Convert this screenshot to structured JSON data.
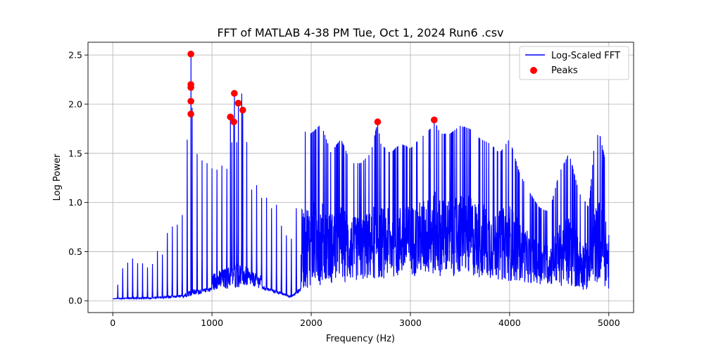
{
  "chart_data": {
    "type": "line",
    "title": "FFT of MATLAB 4-38 PM Tue, Oct 1, 2024 Run6 .csv",
    "xlabel": "Frequency (Hz)",
    "ylabel": "Log Power",
    "xlim": [
      -250,
      5250
    ],
    "ylim": [
      -0.12,
      2.63
    ],
    "xticks": [
      0,
      1000,
      2000,
      3000,
      4000,
      5000
    ],
    "yticks": [
      0.0,
      0.5,
      1.0,
      1.5,
      2.0,
      2.5
    ],
    "xtick_labels": [
      "0",
      "1000",
      "2000",
      "3000",
      "4000",
      "5000"
    ],
    "ytick_labels": [
      "0.0",
      "0.5",
      "1.0",
      "1.5",
      "2.0",
      "2.5"
    ],
    "grid": true,
    "legend_position": "top-right",
    "colors": {
      "line": "#0000ff",
      "peaks": "#ff0000"
    },
    "series": [
      {
        "name": "Log-Scaled FFT",
        "kind": "line",
        "envelope": {
          "x": [
            0,
            100,
            150,
            200,
            250,
            300,
            400,
            500,
            600,
            700,
            750,
            790,
            830,
            900,
            1000,
            1100,
            1150,
            1200,
            1230,
            1260,
            1300,
            1400,
            1500,
            1600,
            1700,
            1800,
            1900,
            1950,
            2000,
            2100,
            2200,
            2300,
            2400,
            2500,
            2600,
            2670,
            2700,
            2800,
            2900,
            3000,
            3100,
            3200,
            3240,
            3300,
            3400,
            3500,
            3600,
            3700,
            3800,
            3900,
            4000,
            4100,
            4200,
            4300,
            4400,
            4500,
            4600,
            4700,
            4800,
            4850,
            4900,
            4950,
            5000
          ],
          "y": [
            0.02,
            0.35,
            0.45,
            0.5,
            0.45,
            0.4,
            0.45,
            0.6,
            0.8,
            1.0,
            1.7,
            2.51,
            1.7,
            1.4,
            1.4,
            1.6,
            1.7,
            1.87,
            2.11,
            2.01,
            1.94,
            1.2,
            1.1,
            1.05,
            0.95,
            0.75,
            1.6,
            1.75,
            1.7,
            1.8,
            1.5,
            1.65,
            1.4,
            1.4,
            1.5,
            1.82,
            1.6,
            1.5,
            1.6,
            1.55,
            1.65,
            1.75,
            1.84,
            1.7,
            1.7,
            1.78,
            1.75,
            1.65,
            1.6,
            1.5,
            1.65,
            1.3,
            1.1,
            0.95,
            0.9,
            1.3,
            1.5,
            1.1,
            0.95,
            1.55,
            1.73,
            1.5,
            1.2
          ],
          "floor_x": [
            0,
            300,
            700,
            1000,
            1400,
            1800,
            1900,
            2000,
            2500,
            3000,
            3500,
            4000,
            4500,
            4800,
            4900,
            5000
          ],
          "floor_y": [
            0.02,
            0.02,
            0.03,
            0.1,
            0.15,
            0.03,
            0.1,
            0.15,
            0.2,
            0.25,
            0.25,
            0.2,
            0.15,
            0.1,
            0.2,
            0.1
          ]
        }
      },
      {
        "name": "Peaks",
        "kind": "scatter",
        "x": [
          787,
          787,
          787,
          787,
          787,
          1185,
          1220,
          1225,
          1265,
          1310,
          2670,
          3240
        ],
        "y": [
          2.51,
          2.2,
          2.17,
          2.03,
          1.9,
          1.87,
          1.82,
          2.11,
          2.01,
          1.94,
          1.82,
          1.84
        ]
      }
    ]
  }
}
